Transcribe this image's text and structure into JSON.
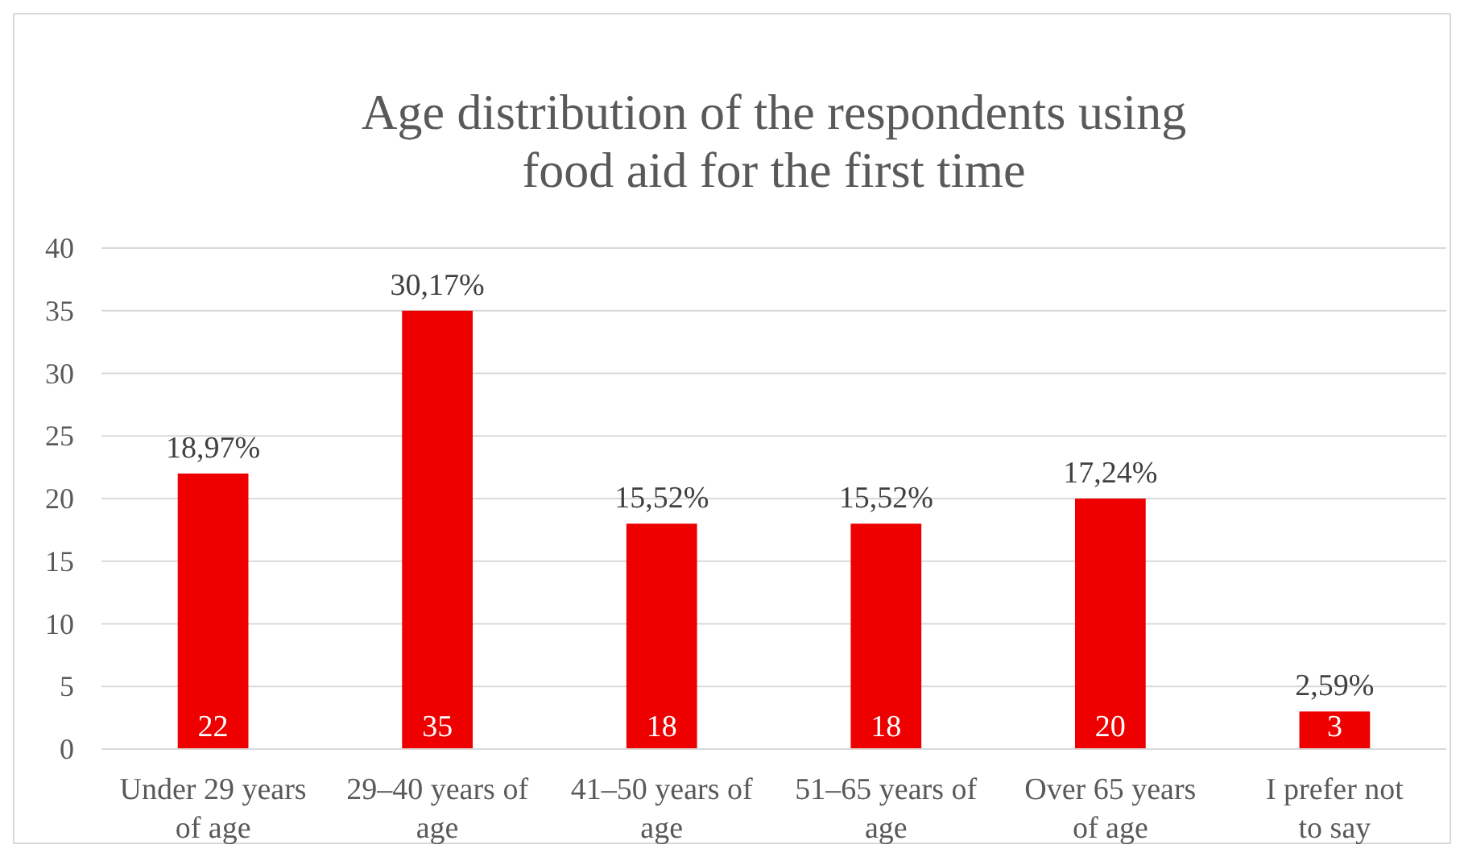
{
  "chart_data": {
    "type": "bar",
    "title": "Age distribution of the respondents using food aid for the first time",
    "categories": [
      "Under 29 years of age",
      "29–40 years of age",
      "41–50 years of age",
      "51–65 years of age",
      "Over 65 years of age",
      "I prefer not to say"
    ],
    "values": [
      22,
      35,
      18,
      18,
      20,
      3
    ],
    "color": "#ee0000",
    "ylim": [
      0,
      40
    ],
    "yticks": [
      0,
      5,
      10,
      15,
      20,
      25,
      30,
      35,
      40
    ],
    "grid": "y",
    "data_labels": true,
    "annotations": [
      {
        "text": "18,97%",
        "x": "Under 29 years of age",
        "y": 22
      },
      {
        "text": "30,17%",
        "x": "29–40 years of age",
        "y": 35
      },
      {
        "text": "15,52%",
        "x": "41–50 years of age",
        "y": 18
      },
      {
        "text": "15,52%",
        "x": "51–65 years of age",
        "y": 18
      },
      {
        "text": "17,24%",
        "x": "Over 65 years of age",
        "y": 20
      },
      {
        "text": "2,59%",
        "x": "I prefer not to say",
        "y": 3
      }
    ]
  }
}
